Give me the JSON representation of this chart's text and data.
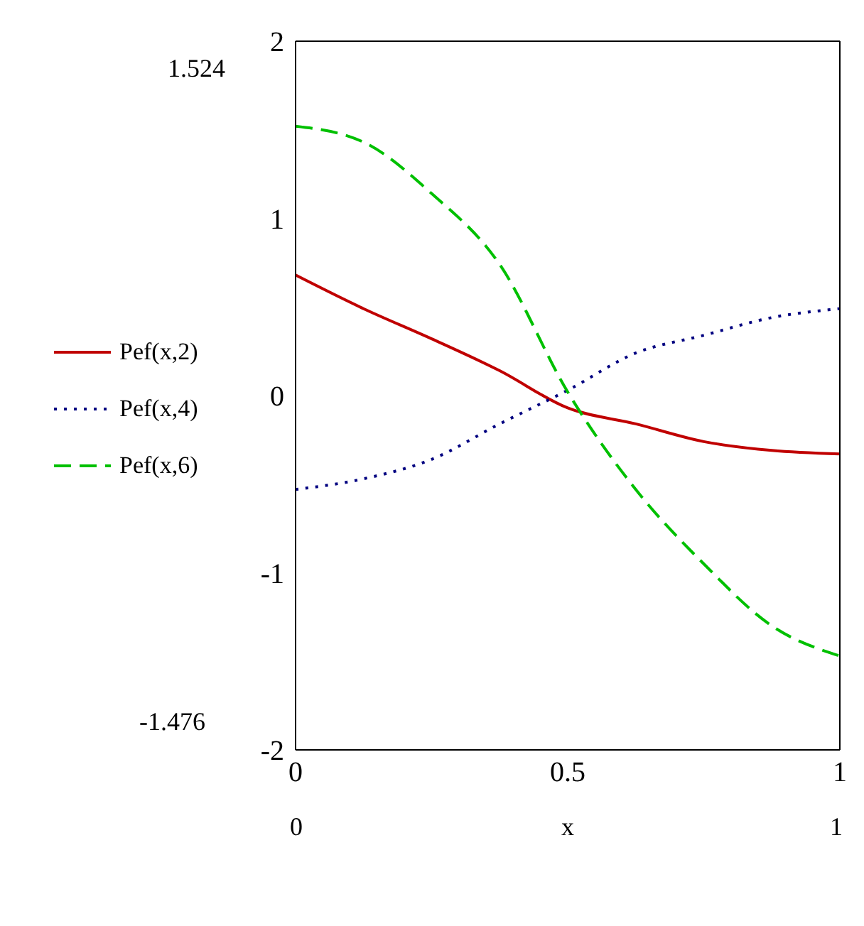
{
  "chart_data": {
    "type": "line",
    "xlabel": "x",
    "x": [
      0,
      0.125,
      0.25,
      0.375,
      0.5,
      0.625,
      0.75,
      0.875,
      1
    ],
    "series": [
      {
        "name": "Pef(x,2)",
        "color": "#c00000",
        "line_style": "solid",
        "values": [
          0.68,
          0.49,
          0.32,
          0.14,
          -0.07,
          -0.16,
          -0.26,
          -0.31,
          -0.33
        ]
      },
      {
        "name": "Pef(x,4)",
        "color": "#000080",
        "line_style": "dotted",
        "values": [
          -0.53,
          -0.47,
          -0.36,
          -0.16,
          0.03,
          0.24,
          0.34,
          0.44,
          0.49
        ]
      },
      {
        "name": "Pef(x,6)",
        "color": "#00c000",
        "line_style": "dashed",
        "values": [
          1.52,
          1.43,
          1.14,
          0.74,
          0.02,
          -0.53,
          -0.95,
          -1.3,
          -1.47
        ]
      }
    ],
    "xlim": [
      0,
      1
    ],
    "xticks": [
      0,
      0.5,
      1
    ],
    "ylim": [
      -2,
      2
    ],
    "yticks": [
      -2,
      -1,
      0,
      1,
      2
    ],
    "legend": "left",
    "marker": "none",
    "annotations": [
      "1.524",
      "-1.476",
      "0",
      "1"
    ]
  }
}
